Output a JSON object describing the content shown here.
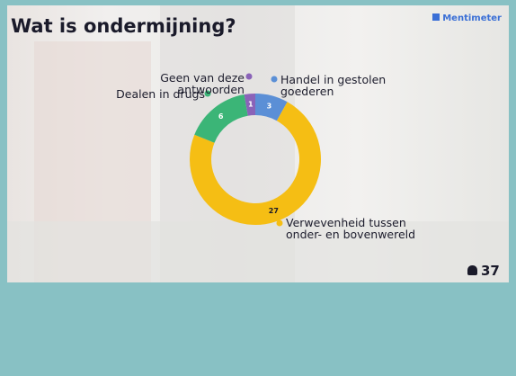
{
  "brand": "Mentimeter",
  "participants": 37,
  "chart_data": {
    "type": "donut",
    "title": "Wat is ondermijning?",
    "categories": [
      "Handel in gestolen goederen",
      "Verwevenheid tussen onder- en bovenwereld",
      "Dealen in drugs",
      "Geen van deze antwoorden"
    ],
    "values": [
      3,
      27,
      6,
      1
    ],
    "colors": [
      "#5b8fd6",
      "#f5be14",
      "#3bb577",
      "#8a63b8"
    ]
  }
}
